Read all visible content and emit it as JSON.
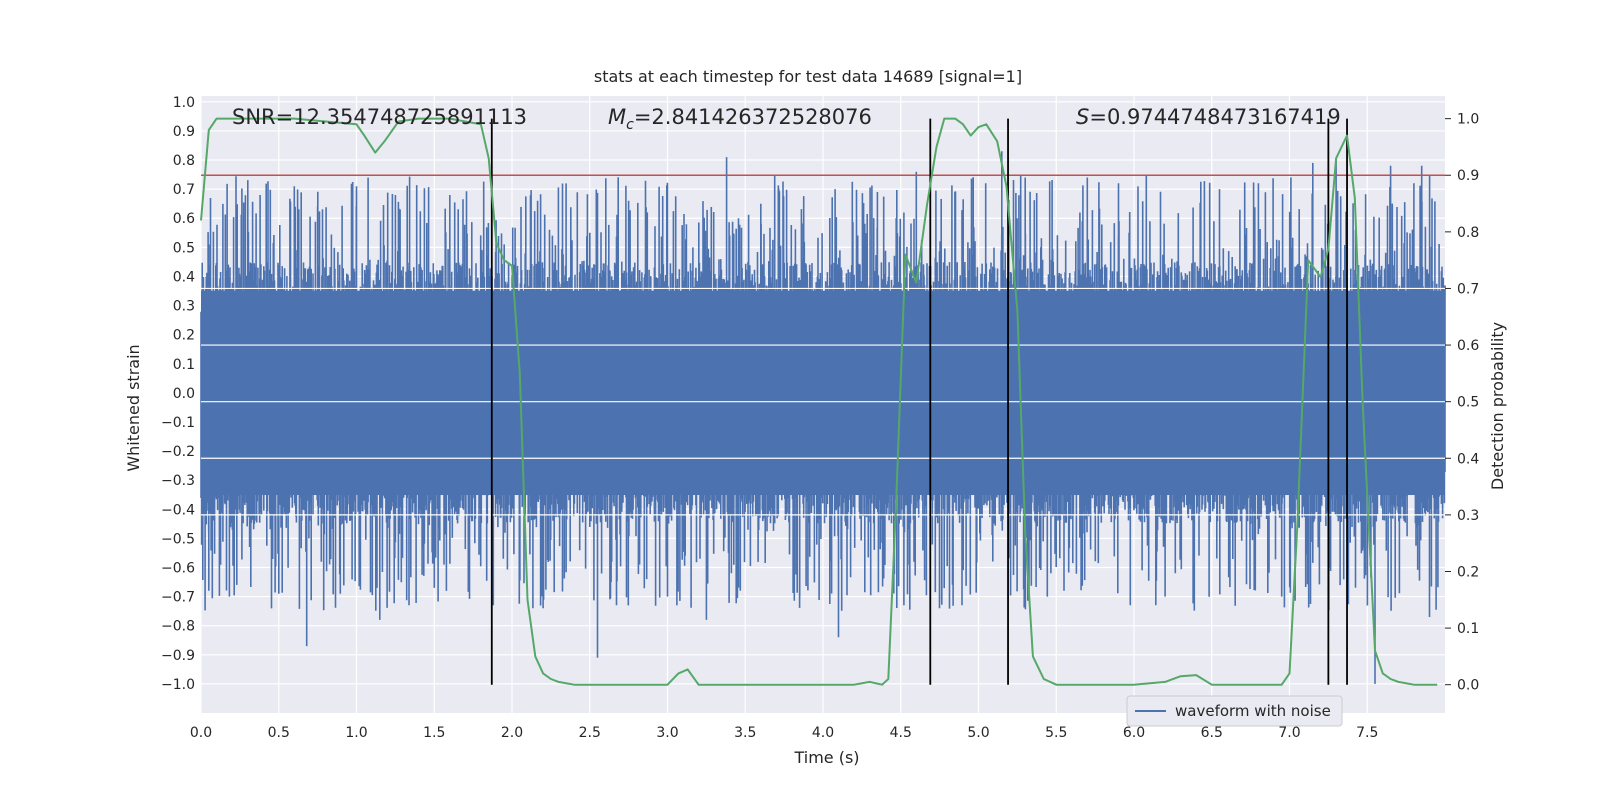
{
  "chart_data": {
    "type": "line",
    "title": "stats at each timestep for test data 14689 [signal=1]",
    "xlabel": "Time (s)",
    "ylabel": "Whitened strain",
    "y2label": "Detection probability",
    "xlim": [
      0.0,
      8.0
    ],
    "ylim": [
      -1.1,
      1.02
    ],
    "y2lim": [
      -0.05,
      1.04
    ],
    "xticks": [
      "0.0",
      "0.5",
      "1.0",
      "1.5",
      "2.0",
      "2.5",
      "3.0",
      "3.5",
      "4.0",
      "4.5",
      "5.0",
      "5.5",
      "6.0",
      "6.5",
      "7.0",
      "7.5"
    ],
    "yticks": [
      "1.0",
      "0.9",
      "0.8",
      "0.7",
      "0.6",
      "0.5",
      "0.4",
      "0.3",
      "0.2",
      "0.1",
      "0.0",
      "−0.1",
      "−0.2",
      "−0.3",
      "−0.4",
      "−0.5",
      "−0.6",
      "−0.7",
      "−0.8",
      "−0.9",
      "−1.0"
    ],
    "y2ticks": [
      "1.0",
      "0.9",
      "0.8",
      "0.7",
      "0.6",
      "0.5",
      "0.4",
      "0.3",
      "0.2",
      "0.1",
      "0.0"
    ],
    "annotations": {
      "snr": "SNR=12.354748725891113",
      "mc_symbol": "M",
      "mc_sub": "c",
      "mc_value": "=2.841426372528076",
      "s_symbol": "S",
      "s_value": "=0.9744748473167419"
    },
    "threshold": {
      "value": 0.9,
      "axis": "y2",
      "color": "#c44e52"
    },
    "vlines": [
      1.87,
      4.69,
      5.19,
      7.25,
      7.37
    ],
    "series": [
      {
        "name": "waveform with noise",
        "axis": "y",
        "color": "#4c72b0",
        "style": "noise",
        "envelope_abs": 0.45,
        "spike_peaks": [
          {
            "x": 0.05,
            "y": 0.51
          },
          {
            "x": 0.05,
            "y": -0.68
          },
          {
            "x": 0.23,
            "y": 0.64
          },
          {
            "x": 0.23,
            "y": -0.66
          },
          {
            "x": 0.38,
            "y": 0.68
          },
          {
            "x": 0.5,
            "y": -0.69
          },
          {
            "x": 0.6,
            "y": 0.71
          },
          {
            "x": 0.68,
            "y": -0.87
          },
          {
            "x": 0.75,
            "y": 0.64
          },
          {
            "x": 1.0,
            "y": 0.71
          },
          {
            "x": 1.15,
            "y": -0.78
          },
          {
            "x": 1.25,
            "y": 0.68
          },
          {
            "x": 1.5,
            "y": -0.67
          },
          {
            "x": 1.6,
            "y": 0.68
          },
          {
            "x": 1.88,
            "y": -0.73
          },
          {
            "x": 1.95,
            "y": 0.51
          },
          {
            "x": 2.2,
            "y": -0.74
          },
          {
            "x": 2.5,
            "y": 0.55
          },
          {
            "x": 2.55,
            "y": -0.91
          },
          {
            "x": 2.75,
            "y": 0.66
          },
          {
            "x": 3.0,
            "y": -0.7
          },
          {
            "x": 3.25,
            "y": -0.78
          },
          {
            "x": 3.38,
            "y": 0.81
          },
          {
            "x": 3.6,
            "y": 0.65
          },
          {
            "x": 3.85,
            "y": -0.7
          },
          {
            "x": 4.1,
            "y": -0.84
          },
          {
            "x": 4.35,
            "y": 0.69
          },
          {
            "x": 4.6,
            "y": 0.76
          },
          {
            "x": 4.75,
            "y": -0.72
          },
          {
            "x": 5.15,
            "y": 0.83
          },
          {
            "x": 5.3,
            "y": 0.74
          },
          {
            "x": 5.55,
            "y": -0.68
          },
          {
            "x": 5.7,
            "y": 0.74
          },
          {
            "x": 5.9,
            "y": 0.72
          },
          {
            "x": 6.2,
            "y": -0.7
          },
          {
            "x": 6.55,
            "y": 0.7
          },
          {
            "x": 6.8,
            "y": 0.72
          },
          {
            "x": 6.95,
            "y": -0.7
          },
          {
            "x": 7.15,
            "y": 0.79
          },
          {
            "x": 7.3,
            "y": 0.8
          },
          {
            "x": 7.55,
            "y": -1.0
          },
          {
            "x": 7.65,
            "y": 0.78
          },
          {
            "x": 7.8,
            "y": 0.72
          },
          {
            "x": 7.85,
            "y": 0.78
          },
          {
            "x": 7.9,
            "y": -0.77
          }
        ]
      },
      {
        "name": "detection probability",
        "axis": "y2",
        "color": "#55a868",
        "style": "line",
        "x": [
          0.0,
          0.05,
          0.1,
          0.2,
          0.4,
          0.6,
          0.8,
          1.0,
          1.05,
          1.12,
          1.18,
          1.27,
          1.4,
          1.6,
          1.8,
          1.85,
          1.9,
          1.95,
          2.0,
          2.05,
          2.1,
          2.15,
          2.2,
          2.25,
          2.3,
          2.4,
          2.6,
          2.8,
          3.0,
          3.07,
          3.13,
          3.2,
          3.4,
          3.6,
          3.8,
          4.0,
          4.2,
          4.3,
          4.38,
          4.42,
          4.47,
          4.53,
          4.6,
          4.67,
          4.73,
          4.78,
          4.85,
          4.9,
          4.95,
          5.0,
          5.05,
          5.12,
          5.18,
          5.25,
          5.3,
          5.35,
          5.42,
          5.5,
          5.6,
          5.8,
          6.0,
          6.2,
          6.3,
          6.4,
          6.5,
          6.7,
          6.95,
          7.0,
          7.05,
          7.12,
          7.2,
          7.25,
          7.3,
          7.37,
          7.42,
          7.47,
          7.55,
          7.6,
          7.65,
          7.7,
          7.8,
          7.95
        ],
        "y": [
          0.82,
          0.98,
          1.0,
          1.0,
          1.0,
          1.0,
          0.995,
          0.99,
          0.97,
          0.94,
          0.96,
          0.995,
          1.0,
          1.0,
          0.99,
          0.93,
          0.78,
          0.75,
          0.74,
          0.55,
          0.15,
          0.05,
          0.02,
          0.01,
          0.005,
          0.0,
          0.0,
          0.0,
          0.0,
          0.02,
          0.027,
          0.0,
          0.0,
          0.0,
          0.0,
          0.0,
          0.0,
          0.005,
          0.0,
          0.01,
          0.32,
          0.76,
          0.71,
          0.85,
          0.95,
          1.0,
          1.0,
          0.99,
          0.97,
          0.985,
          0.99,
          0.96,
          0.88,
          0.66,
          0.27,
          0.05,
          0.01,
          0.0,
          0.0,
          0.0,
          0.0,
          0.005,
          0.015,
          0.017,
          0.0,
          0.0,
          0.0,
          0.02,
          0.28,
          0.75,
          0.72,
          0.77,
          0.93,
          0.97,
          0.86,
          0.5,
          0.06,
          0.02,
          0.01,
          0.005,
          0.0,
          0.0
        ]
      }
    ],
    "legend": {
      "position": "lower-right",
      "entries": [
        "waveform with noise"
      ]
    },
    "grid": true
  }
}
